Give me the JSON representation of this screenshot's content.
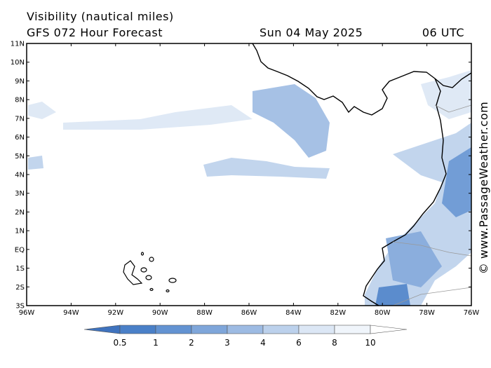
{
  "header": {
    "title": "Visibility (nautical miles)",
    "model": "GFS 072 Hour Forecast",
    "date": "Sun 04 May 2025",
    "time": "06 UTC"
  },
  "map": {
    "lat_labels": [
      "11N",
      "10N",
      "9N",
      "8N",
      "7N",
      "6N",
      "5N",
      "4N",
      "3N",
      "2N",
      "1N",
      "EQ",
      "1S",
      "2S",
      "3S"
    ],
    "lon_labels": [
      "96W",
      "94W",
      "92W",
      "90W",
      "88W",
      "86W",
      "84W",
      "82W",
      "80W",
      "78W",
      "76W"
    ],
    "watermark": "© www.PassageWeather.com"
  },
  "colorbar": {
    "labels": [
      "0.5",
      "1",
      "2",
      "3",
      "4",
      "6",
      "8",
      "10"
    ]
  }
}
